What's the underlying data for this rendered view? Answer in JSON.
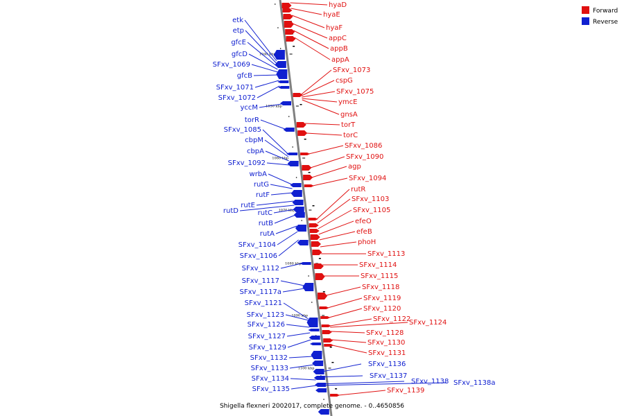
{
  "colors": {
    "forward": "#e01010",
    "reverse": "#1020d0",
    "backbone": "#808080",
    "tick": "#000000"
  },
  "legend": {
    "forward": "Forward",
    "reverse": "Reverse"
  },
  "caption": "Shigella flexneri 2002017, complete genome. - 0..4650856",
  "scale_ticks": [
    "1040 kbp",
    "1050 kbp",
    "1060 kbp",
    "1070 kbp",
    "1080 kbp",
    "1090 kbp",
    "1100 kbp"
  ],
  "forward_genes": [
    "hyaD",
    "hyaE",
    "hyaF",
    "appC",
    "appB",
    "appA",
    "SFxv_1073",
    "cspG",
    "SFxv_1075",
    "ymcE",
    "gnsA",
    "torT",
    "torC",
    "SFxv_1086",
    "SFxv_1090",
    "agp",
    "SFxv_1094",
    "rutR",
    "SFxv_1103",
    "SFxv_1105",
    "efeO",
    "efeB",
    "phoH",
    "SFxv_1113",
    "SFxv_1114",
    "SFxv_1115",
    "SFxv_1118",
    "SFxv_1119",
    "SFxv_1120",
    "SFxv_1122",
    "SFxv_1124",
    "SFxv_1128",
    "SFxv_1130",
    "SFxv_1131",
    "SFxv_1139"
  ],
  "reverse_genes": [
    "etk",
    "etp",
    "gfcE",
    "gfcD",
    "SFxv_1069",
    "gfcB",
    "SFxv_1071",
    "SFxv_1072",
    "yccM",
    "torR",
    "SFxv_1085",
    "cbpM",
    "cbpA",
    "SFxv_1092",
    "wrbA",
    "rutG",
    "rutF",
    "rutE",
    "rutD",
    "rutC",
    "rutB",
    "rutA",
    "SFxv_1104",
    "SFxv_1106",
    "SFxv_1112",
    "SFxv_1117",
    "SFxv_1117a",
    "SFxv_1121",
    "SFxv_1123",
    "SFxv_1126",
    "SFxv_1127",
    "SFxv_1129",
    "SFxv_1132",
    "SFxv_1133",
    "SFxv_1134",
    "SFxv_1135",
    "SFxv_1136",
    "SFxv_1137",
    "SFxv_1138",
    "SFxv_1138a"
  ]
}
